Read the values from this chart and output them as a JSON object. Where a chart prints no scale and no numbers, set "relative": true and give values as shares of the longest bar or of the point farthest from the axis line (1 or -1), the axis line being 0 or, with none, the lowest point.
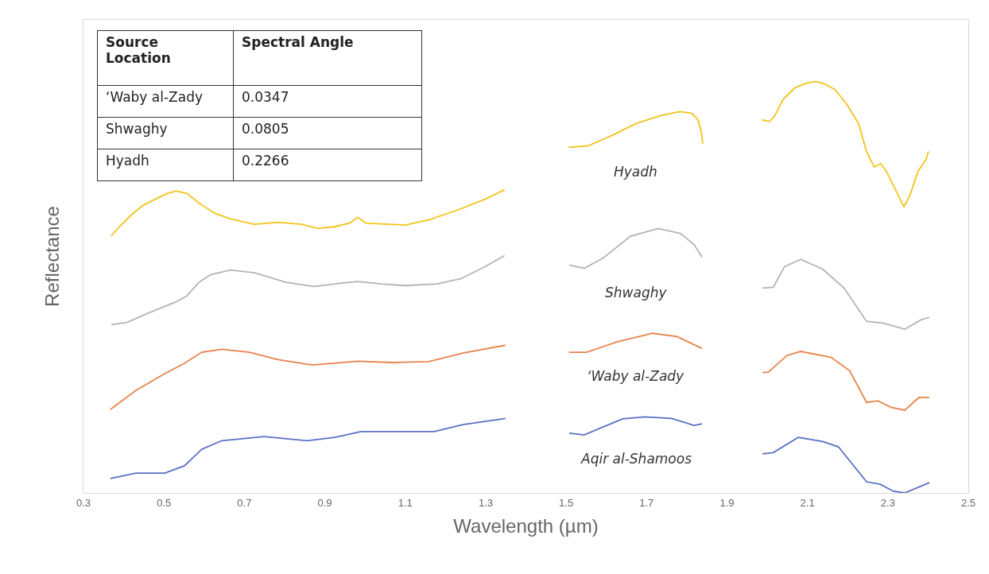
{
  "chart_data": {
    "type": "line",
    "relative": true,
    "xlabel": "Wavelength (µm)",
    "ylabel": "Reflectance",
    "xlim": [
      0.3,
      2.5
    ],
    "xticks": [
      0.3,
      0.5,
      0.7,
      0.9,
      1.1,
      1.3,
      1.5,
      1.7,
      1.9,
      2.1,
      2.3,
      2.5
    ],
    "grid": false,
    "legend": false,
    "marker": "none",
    "line_style": "solid",
    "annotations": [
      "Source Location",
      "Spectral Angle",
      "‘Waby al-Zady",
      "0.0347",
      " Shwaghy",
      "0.0805",
      "Hyadh",
      "0.2266"
    ],
    "series": [
      {
        "name": "Hyadh",
        "color": "#f2c41c",
        "x": [
          0.369,
          0.389,
          0.419,
          0.448,
          0.478,
          0.508,
          0.531,
          0.557,
          0.587,
          0.626,
          0.666,
          0.725,
          0.784,
          0.843,
          0.883,
          0.923,
          0.962,
          0.982,
          1.002,
          1.041,
          1.1,
          1.16,
          1.239,
          1.298,
          1.347,
          1.42,
          1.506,
          1.555,
          1.614,
          1.674,
          1.733,
          1.782,
          1.812,
          1.828,
          1.836,
          1.84,
          1.91,
          1.986,
          2.006,
          2.019,
          2.039,
          2.069,
          2.098,
          2.118,
          2.138,
          2.168,
          2.197,
          2.227,
          2.247,
          2.266,
          2.282,
          2.296,
          2.316,
          2.34,
          2.355,
          2.375,
          2.395,
          2.401
        ],
        "values": [
          0.625,
          0.647,
          0.676,
          0.699,
          0.714,
          0.728,
          0.734,
          0.728,
          0.705,
          0.68,
          0.666,
          0.653,
          0.658,
          0.653,
          0.643,
          0.647,
          0.656,
          0.67,
          0.656,
          0.654,
          0.651,
          0.664,
          0.691,
          0.714,
          0.737,
          null,
          0.84,
          0.844,
          0.869,
          0.898,
          0.917,
          0.927,
          0.923,
          0.907,
          0.878,
          0.849,
          null,
          0.907,
          0.903,
          0.917,
          0.956,
          0.985,
          0.996,
          1,
          0.996,
          0.981,
          0.946,
          0.898,
          0.83,
          0.792,
          0.801,
          0.782,
          0.743,
          0.695,
          0.724,
          0.782,
          0.811,
          0.83
        ]
      },
      {
        "name": "Shwaghy",
        "color": "#b4b4b4",
        "x": [
          0.369,
          0.409,
          0.468,
          0.527,
          0.557,
          0.587,
          0.617,
          0.666,
          0.725,
          0.804,
          0.873,
          0.942,
          0.982,
          1.041,
          1.1,
          1.179,
          1.239,
          1.298,
          1.347,
          1.42,
          1.508,
          1.545,
          1.592,
          1.66,
          1.729,
          1.784,
          1.818,
          1.838,
          1.91,
          1.988,
          2.015,
          2.043,
          2.083,
          2.138,
          2.191,
          2.247,
          2.288,
          2.342,
          2.383,
          2.403
        ],
        "values": [
          0.409,
          0.415,
          0.44,
          0.463,
          0.479,
          0.512,
          0.531,
          0.542,
          0.535,
          0.512,
          0.502,
          0.51,
          0.514,
          0.508,
          0.504,
          0.508,
          0.521,
          0.55,
          0.577,
          null,
          0.554,
          0.546,
          0.571,
          0.624,
          0.643,
          0.631,
          0.604,
          0.573,
          null,
          0.498,
          0.5,
          0.55,
          0.568,
          0.544,
          0.498,
          0.417,
          0.413,
          0.398,
          0.421,
          0.427
        ]
      },
      {
        "name": "‘Waby al-Zady",
        "color": "#e8834a",
        "x": [
          0.367,
          0.43,
          0.502,
          0.551,
          0.594,
          0.644,
          0.713,
          0.784,
          0.869,
          0.982,
          1.067,
          1.158,
          1.243,
          1.349,
          1.42,
          1.507,
          1.551,
          1.626,
          1.715,
          1.776,
          1.838,
          1.91,
          1.988,
          2.002,
          2.049,
          2.083,
          2.158,
          2.205,
          2.247,
          2.275,
          2.308,
          2.342,
          2.377,
          2.403
        ],
        "values": [
          0.203,
          0.249,
          0.29,
          0.315,
          0.342,
          0.349,
          0.342,
          0.324,
          0.311,
          0.32,
          0.317,
          0.319,
          0.34,
          0.359,
          null,
          0.342,
          0.342,
          0.367,
          0.388,
          0.38,
          0.351,
          null,
          0.293,
          0.293,
          0.334,
          0.344,
          0.33,
          0.297,
          0.22,
          0.224,
          0.208,
          0.201,
          0.232,
          0.232
        ]
      },
      {
        "name": "Aqir al-Shamoos",
        "color": "#5a70c4",
        "x": [
          0.367,
          0.43,
          0.502,
          0.551,
          0.594,
          0.644,
          0.749,
          0.856,
          0.925,
          0.99,
          1.172,
          1.243,
          1.349,
          1.42,
          1.508,
          1.545,
          1.64,
          1.696,
          1.763,
          1.818,
          1.838,
          1.91,
          1.988,
          2.015,
          2.077,
          2.138,
          2.177,
          2.247,
          2.281,
          2.314,
          2.342,
          2.403
        ],
        "values": [
          0.035,
          0.048,
          0.048,
          0.066,
          0.106,
          0.127,
          0.137,
          0.127,
          0.135,
          0.149,
          0.149,
          0.166,
          0.181,
          null,
          0.145,
          0.141,
          0.18,
          0.185,
          0.181,
          0.164,
          0.168,
          null,
          0.095,
          0.098,
          0.135,
          0.125,
          0.112,
          0.027,
          0.021,
          0.004,
          0,
          0.025
        ]
      }
    ]
  }
}
